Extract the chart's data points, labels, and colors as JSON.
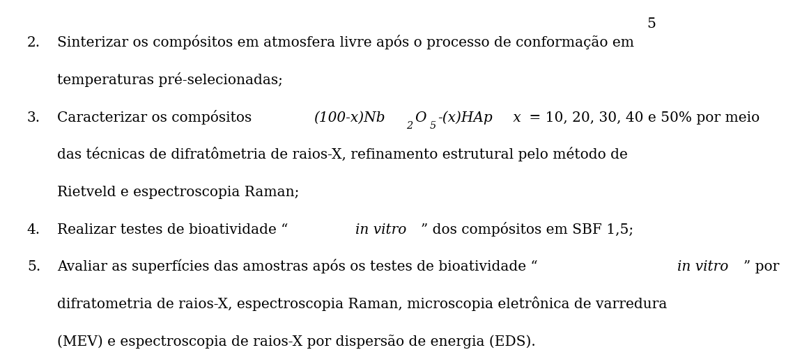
{
  "background_color": "#ffffff",
  "page_number": "5",
  "font_color": "#000000",
  "font_family": "DejaVu Serif",
  "font_size_main": 14.5,
  "page_number_fontsize": 14.5,
  "items": [
    {
      "number": "2.",
      "lines": [
        "Sinterizar os compósitos em atmosfera livre após o processo de conformação em",
        "temperaturas pré-selecionadas;"
      ]
    },
    {
      "number": "3.",
      "lines": [
        "MIXED:(100-x)Nb₂O₅-(x)HAp x = 10, 20, 30, 40 e 50% por meio",
        "das técnicas de difratômetria de raios-X, refinamento estrutural pelo método de",
        "Rietveld e espectroscopia Raman;"
      ]
    },
    {
      "number": "4.",
      "lines": [
        "MIXED4:Realizar testes de bioatividade “in vitro” dos compósitos em SBF 1,5;"
      ]
    },
    {
      "number": "5.",
      "lines": [
        "MIXED5:Avaliar as superfícies das amostras após os testes de bioatividade “in vitro” por",
        "difratometria de raios-X, espectroscopia Raman, microscopia eletrônica de varredura",
        "(MEV) e espectroscopia de raios-X por dispersão de energia (EDS)."
      ]
    }
  ]
}
